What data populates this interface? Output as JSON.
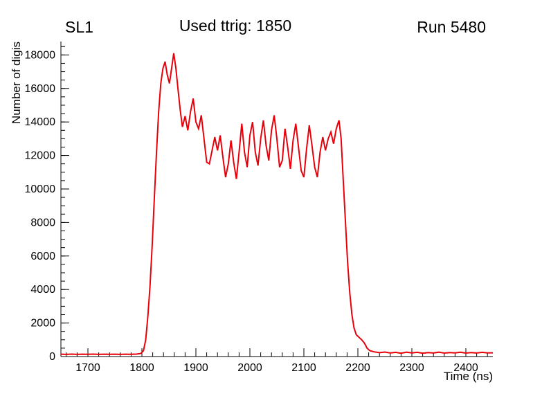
{
  "chart_data": {
    "type": "line",
    "title_left": "SL1",
    "title_center": "Used ttrig: 1850",
    "title_right": "Run 5480",
    "xlabel": "Time (ns)",
    "ylabel": "Number of digis",
    "xlim": [
      1650,
      2450
    ],
    "ylim": [
      0,
      18800
    ],
    "x_ticks": [
      1700,
      1800,
      1900,
      2000,
      2100,
      2200,
      2300,
      2400
    ],
    "y_ticks": [
      0,
      2000,
      4000,
      6000,
      8000,
      10000,
      12000,
      14000,
      16000,
      18000
    ],
    "x_minor_step": 20,
    "y_minor_step": 500,
    "grid": false,
    "legend": "none",
    "line_color": "#e8000a",
    "axis_color": "#000000",
    "series": [
      {
        "name": "digis",
        "points": [
          [
            1650,
            140
          ],
          [
            1660,
            130
          ],
          [
            1670,
            145
          ],
          [
            1680,
            130
          ],
          [
            1690,
            140
          ],
          [
            1700,
            132
          ],
          [
            1710,
            143
          ],
          [
            1720,
            130
          ],
          [
            1730,
            140
          ],
          [
            1740,
            132
          ],
          [
            1750,
            142
          ],
          [
            1760,
            130
          ],
          [
            1770,
            140
          ],
          [
            1780,
            133
          ],
          [
            1790,
            145
          ],
          [
            1798,
            180
          ],
          [
            1803,
            350
          ],
          [
            1807,
            1000
          ],
          [
            1811,
            2400
          ],
          [
            1815,
            4200
          ],
          [
            1819,
            6600
          ],
          [
            1823,
            9400
          ],
          [
            1827,
            12200
          ],
          [
            1831,
            14600
          ],
          [
            1835,
            16300
          ],
          [
            1839,
            17200
          ],
          [
            1843,
            17600
          ],
          [
            1847,
            16800
          ],
          [
            1851,
            16300
          ],
          [
            1855,
            17200
          ],
          [
            1859,
            18100
          ],
          [
            1863,
            17200
          ],
          [
            1867,
            15900
          ],
          [
            1871,
            14700
          ],
          [
            1875,
            13700
          ],
          [
            1880,
            14350
          ],
          [
            1885,
            13500
          ],
          [
            1890,
            14600
          ],
          [
            1895,
            15400
          ],
          [
            1900,
            14000
          ],
          [
            1905,
            13600
          ],
          [
            1910,
            14400
          ],
          [
            1915,
            13000
          ],
          [
            1920,
            11600
          ],
          [
            1925,
            11500
          ],
          [
            1930,
            12300
          ],
          [
            1935,
            13100
          ],
          [
            1940,
            12300
          ],
          [
            1945,
            13200
          ],
          [
            1950,
            11900
          ],
          [
            1955,
            10700
          ],
          [
            1960,
            11500
          ],
          [
            1965,
            12900
          ],
          [
            1970,
            11600
          ],
          [
            1975,
            10600
          ],
          [
            1980,
            12200
          ],
          [
            1985,
            13900
          ],
          [
            1990,
            12200
          ],
          [
            1995,
            11300
          ],
          [
            2000,
            13200
          ],
          [
            2005,
            14000
          ],
          [
            2010,
            12200
          ],
          [
            2015,
            11400
          ],
          [
            2020,
            13000
          ],
          [
            2025,
            14100
          ],
          [
            2030,
            12600
          ],
          [
            2035,
            11700
          ],
          [
            2040,
            13500
          ],
          [
            2045,
            14400
          ],
          [
            2050,
            13000
          ],
          [
            2055,
            11300
          ],
          [
            2060,
            11700
          ],
          [
            2065,
            13600
          ],
          [
            2070,
            12500
          ],
          [
            2075,
            11200
          ],
          [
            2080,
            12900
          ],
          [
            2085,
            13900
          ],
          [
            2090,
            12500
          ],
          [
            2095,
            11100
          ],
          [
            2100,
            10700
          ],
          [
            2105,
            12400
          ],
          [
            2110,
            13800
          ],
          [
            2115,
            12600
          ],
          [
            2120,
            11300
          ],
          [
            2125,
            10700
          ],
          [
            2130,
            12200
          ],
          [
            2135,
            13100
          ],
          [
            2140,
            12300
          ],
          [
            2145,
            13000
          ],
          [
            2150,
            13400
          ],
          [
            2155,
            12700
          ],
          [
            2160,
            13600
          ],
          [
            2165,
            14100
          ],
          [
            2169,
            13000
          ],
          [
            2173,
            10500
          ],
          [
            2177,
            8000
          ],
          [
            2181,
            5600
          ],
          [
            2185,
            3800
          ],
          [
            2189,
            2500
          ],
          [
            2193,
            1700
          ],
          [
            2197,
            1300
          ],
          [
            2202,
            1150
          ],
          [
            2207,
            1000
          ],
          [
            2212,
            800
          ],
          [
            2217,
            500
          ],
          [
            2222,
            350
          ],
          [
            2230,
            280
          ],
          [
            2240,
            230
          ],
          [
            2250,
            270
          ],
          [
            2260,
            210
          ],
          [
            2270,
            250
          ],
          [
            2280,
            200
          ],
          [
            2290,
            260
          ],
          [
            2300,
            215
          ],
          [
            2310,
            250
          ],
          [
            2320,
            200
          ],
          [
            2330,
            240
          ],
          [
            2340,
            210
          ],
          [
            2350,
            260
          ],
          [
            2360,
            205
          ],
          [
            2370,
            240
          ],
          [
            2380,
            215
          ],
          [
            2390,
            255
          ],
          [
            2400,
            205
          ],
          [
            2410,
            240
          ],
          [
            2420,
            210
          ],
          [
            2430,
            250
          ],
          [
            2440,
            215
          ],
          [
            2450,
            225
          ]
        ]
      }
    ]
  }
}
